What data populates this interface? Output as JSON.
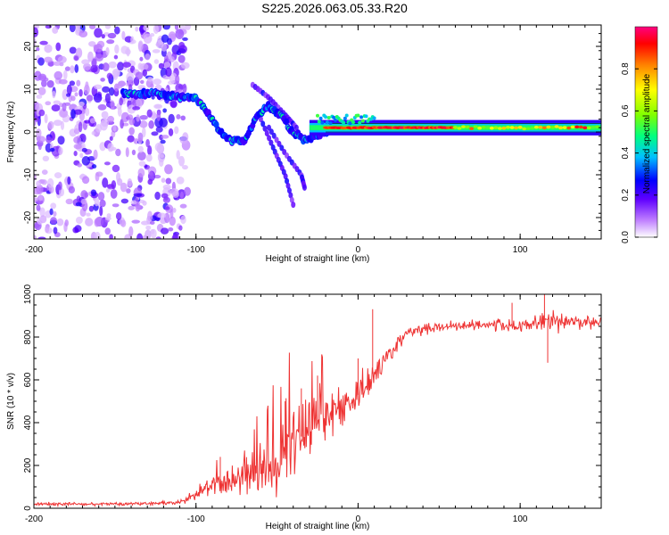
{
  "figure": {
    "title": "S225.2026.063.05.33.R20"
  },
  "chart_data": [
    {
      "type": "heatmap",
      "xlabel": "Height of straight line (km)",
      "ylabel": "Frequency (Hz)",
      "xlim": [
        -200,
        150
      ],
      "ylim": [
        -25,
        25
      ],
      "x_ticks": [
        -200,
        -100,
        0,
        100
      ],
      "x_tick_labels": [
        "-200",
        "-100",
        "0",
        "100"
      ],
      "y_ticks": [
        -20,
        -10,
        0,
        10,
        20
      ],
      "y_tick_labels": [
        "-20",
        "-10",
        "0",
        "10",
        "20"
      ],
      "colorbar": {
        "label": "Normalized spectral amplitude",
        "range": [
          0,
          1
        ],
        "ticks": [
          0.0,
          0.2,
          0.4,
          0.6,
          0.8
        ],
        "tick_labels": [
          "0.0",
          "0.2",
          "0.4",
          "0.6",
          "0.8"
        ],
        "colors": [
          "#ffffff",
          "#c080ff",
          "#6000ff",
          "#0000ff",
          "#00c0ff",
          "#00ff80",
          "#80ff00",
          "#ffff00",
          "#ff8000",
          "#ff0000",
          "#ff0080"
        ]
      },
      "features": {
        "noise_region_x": [
          -200,
          -105
        ],
        "main_ridge": [
          {
            "x": -140,
            "f": 9
          },
          {
            "x": -125,
            "f": 9
          },
          {
            "x": -110,
            "f": 8
          },
          {
            "x": -100,
            "f": 8
          },
          {
            "x": -92,
            "f": 4
          },
          {
            "x": -85,
            "f": 0
          },
          {
            "x": -78,
            "f": -2
          },
          {
            "x": -70,
            "f": -2
          },
          {
            "x": -62,
            "f": 4
          },
          {
            "x": -55,
            "f": 6
          },
          {
            "x": -48,
            "f": 4
          },
          {
            "x": -40,
            "f": 0
          },
          {
            "x": -32,
            "f": -2
          },
          {
            "x": -25,
            "f": -1
          },
          {
            "x": -15,
            "f": 1
          },
          {
            "x": 0,
            "f": 2
          },
          {
            "x": 50,
            "f": 1
          },
          {
            "x": 100,
            "f": 1
          },
          {
            "x": 150,
            "f": 1
          }
        ],
        "steady_tone_hz": 1
      }
    },
    {
      "type": "line",
      "xlabel": "Height of straight line (km)",
      "ylabel": "SNR (10 * v/v)",
      "xlim": [
        -200,
        150
      ],
      "ylim": [
        0,
        1000
      ],
      "x_ticks": [
        -200,
        -100,
        0,
        100
      ],
      "x_tick_labels": [
        "-200",
        "-100",
        "0",
        "100"
      ],
      "y_ticks": [
        0,
        200,
        400,
        600,
        800,
        1000
      ],
      "y_tick_labels": [
        "0",
        "200",
        "400",
        "600",
        "800",
        "1000"
      ],
      "series": [
        {
          "name": "SNR",
          "color": "#ee3333",
          "x": [
            -200,
            -150,
            -110,
            -100,
            -90,
            -80,
            -70,
            -60,
            -50,
            -40,
            -30,
            -20,
            -10,
            0,
            10,
            20,
            30,
            50,
            80,
            100,
            115,
            130,
            150
          ],
          "values": [
            20,
            20,
            25,
            60,
            110,
            130,
            130,
            150,
            200,
            300,
            370,
            420,
            480,
            530,
            640,
            720,
            820,
            850,
            860,
            850,
            880,
            870,
            870
          ],
          "noise_amplitude": [
            8,
            8,
            10,
            30,
            60,
            70,
            80,
            100,
            140,
            180,
            180,
            130,
            110,
            100,
            70,
            45,
            30,
            25,
            25,
            40,
            60,
            35,
            30
          ],
          "spikes": [
            {
              "x": -85,
              "value": 240
            },
            {
              "x": -45,
              "value": 500
            },
            {
              "x": -35,
              "value": 560
            },
            {
              "x": -25,
              "value": 620
            },
            {
              "x": 0,
              "value": 700
            },
            {
              "x": 9,
              "value": 930
            },
            {
              "x": 95,
              "value": 960
            },
            {
              "x": 115,
              "value": 1010
            },
            {
              "x": 117,
              "value": 680
            }
          ]
        }
      ]
    }
  ]
}
